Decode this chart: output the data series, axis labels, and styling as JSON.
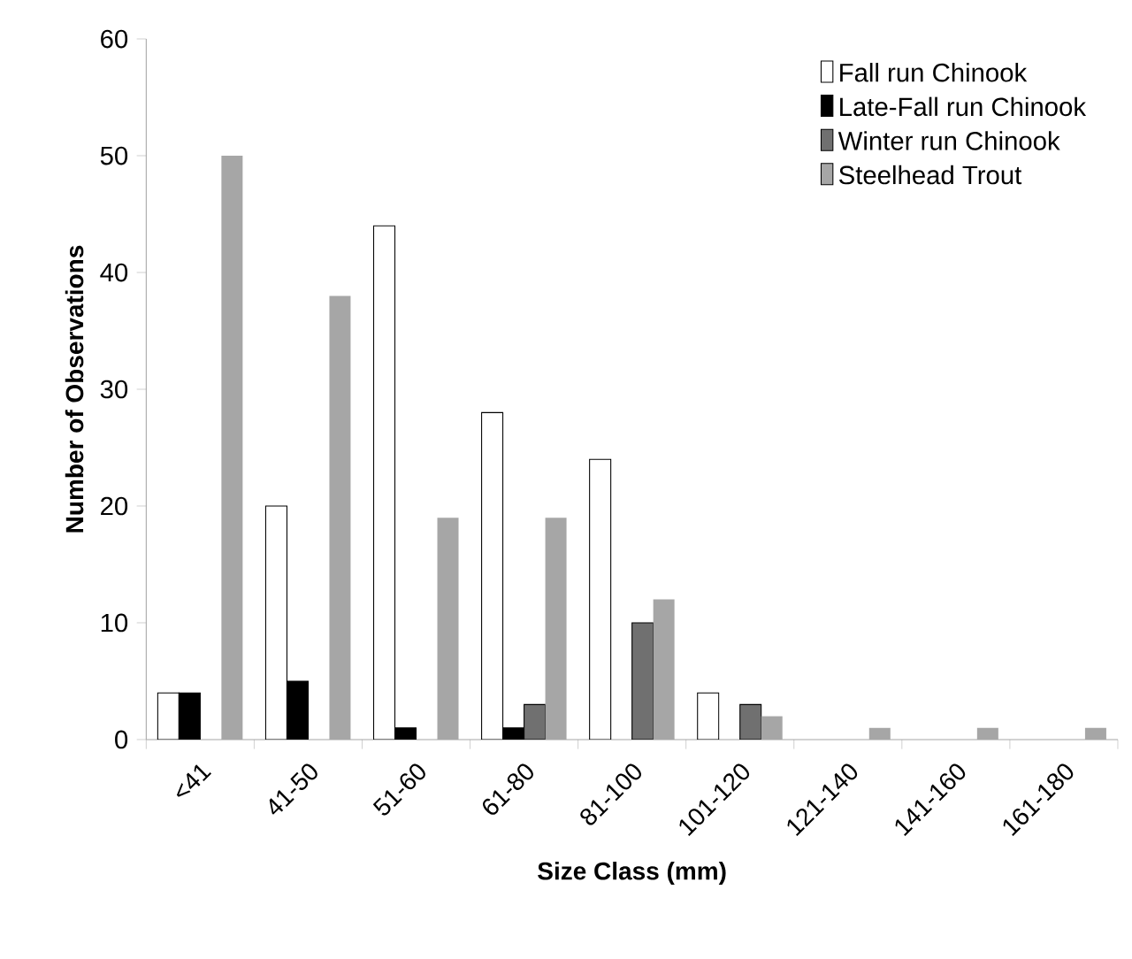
{
  "chart_data": {
    "type": "bar",
    "xlabel": "Size Class (mm)",
    "ylabel": "Number of Observations",
    "categories": [
      "<41",
      "41-50",
      "51-60",
      "61-80",
      "81-100",
      "101-120",
      "121-140",
      "141-160",
      "161-180"
    ],
    "series": [
      {
        "name": "Fall run Chinook",
        "color": "#ffffff",
        "values": [
          4,
          20,
          44,
          28,
          24,
          4,
          null,
          null,
          null
        ]
      },
      {
        "name": "Late-Fall run Chinook",
        "color": "#000000",
        "values": [
          4,
          5,
          1,
          1,
          null,
          null,
          null,
          null,
          null
        ]
      },
      {
        "name": "Winter run Chinook",
        "color": "#707070",
        "values": [
          null,
          null,
          null,
          3,
          10,
          3,
          null,
          null,
          null
        ]
      },
      {
        "name": "Steelhead Trout",
        "color": "#a6a6a6",
        "values": [
          50,
          38,
          19,
          19,
          12,
          2,
          1,
          1,
          1
        ]
      }
    ],
    "ylim": [
      0,
      60
    ],
    "yticks": [
      0,
      10,
      20,
      30,
      40,
      50,
      60
    ],
    "grid": false,
    "legend": "top right"
  }
}
